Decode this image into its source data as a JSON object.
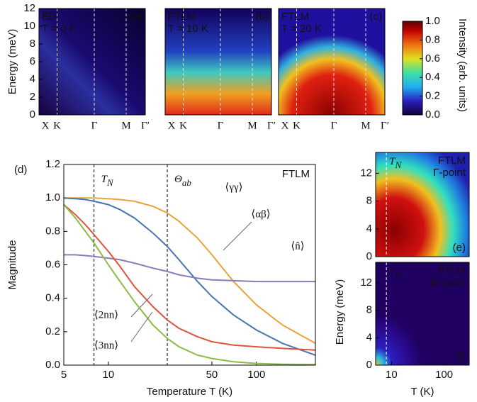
{
  "chart_data": [
    {
      "type": "heatmap",
      "title": "ED",
      "subtitle": "T = 0 K",
      "panel": "(a)",
      "categories": [
        "X",
        "K",
        "Γ",
        "M",
        "Γ′"
      ],
      "ylabel": "Energy (meV)",
      "ylim": [
        0,
        12
      ],
      "yticks": [
        0,
        2,
        4,
        6,
        8,
        10,
        12
      ]
    },
    {
      "type": "heatmap",
      "title": "FTLM",
      "subtitle": "T = 10 K",
      "panel": "(b)",
      "categories": [
        "X",
        "K",
        "Γ",
        "M",
        "Γ′"
      ],
      "ylim": [
        0,
        12
      ]
    },
    {
      "type": "heatmap",
      "title": "FTLM",
      "subtitle": "T = 20 K",
      "panel": "(c)",
      "categories": [
        "X",
        "K",
        "Γ",
        "M",
        "Γ′"
      ],
      "ylim": [
        0,
        12
      ]
    },
    {
      "type": "colorbar",
      "label": "Intensity (arb. units)",
      "ylim": [
        0,
        1
      ],
      "yticks": [
        {
          "value": 0,
          "label": "0.0"
        },
        {
          "value": 0.2,
          "label": "0.2"
        },
        {
          "value": 0.4,
          "label": "0.4"
        },
        {
          "value": 0.6,
          "label": "0.6"
        },
        {
          "value": 0.8,
          "label": "0.8"
        },
        {
          "value": 1,
          "label": "1.0"
        }
      ]
    },
    {
      "type": "line",
      "panel": "(d)",
      "annotation": "FTLM",
      "xlabel": "Temperature T (K)",
      "ylabel": "Magnitude",
      "xlog": true,
      "xlim": [
        5,
        250
      ],
      "xticks": [
        5,
        10,
        50,
        100
      ],
      "ylim": [
        0,
        1.2
      ],
      "yticks": [
        {
          "value": 0,
          "label": "0.0"
        },
        {
          "value": 0.2,
          "label": "0.2"
        },
        {
          "value": 0.4,
          "label": "0.4"
        },
        {
          "value": 0.6,
          "label": "0.6"
        },
        {
          "value": 0.8,
          "label": "0.8"
        },
        {
          "value": 1,
          "label": "1.0"
        },
        {
          "value": 1.2,
          "label": "1.2"
        }
      ],
      "vlines": [
        {
          "x": 8,
          "label": "T",
          "sub": "N"
        },
        {
          "x": 25,
          "label": "Θ",
          "sub": "ab"
        }
      ],
      "x": [
        5,
        6,
        7,
        8,
        10,
        12,
        15,
        20,
        25,
        30,
        40,
        50,
        70,
        100,
        150,
        250
      ],
      "series": [
        {
          "name": "⟨γγ⟩",
          "color": "#e8a33a",
          "values": [
            1,
            1,
            1,
            1,
            0.995,
            0.99,
            0.98,
            0.95,
            0.91,
            0.86,
            0.76,
            0.66,
            0.5,
            0.36,
            0.24,
            0.13
          ]
        },
        {
          "name": "⟨αβ⟩",
          "color": "#4a74b0",
          "values": [
            1,
            0.995,
            0.99,
            0.98,
            0.96,
            0.93,
            0.88,
            0.79,
            0.71,
            0.63,
            0.5,
            0.41,
            0.3,
            0.21,
            0.13,
            0.06
          ]
        },
        {
          "name": "⟨n̂⟩",
          "color": "#8a7bb8",
          "values": [
            0.66,
            0.66,
            0.655,
            0.65,
            0.64,
            0.63,
            0.61,
            0.58,
            0.56,
            0.54,
            0.52,
            0.51,
            0.505,
            0.5,
            0.5,
            0.5
          ]
        },
        {
          "name": "⟨2nn⟩",
          "color": "#e0533a",
          "values": [
            0.96,
            0.9,
            0.84,
            0.78,
            0.68,
            0.59,
            0.47,
            0.35,
            0.27,
            0.22,
            0.17,
            0.14,
            0.12,
            0.11,
            0.1,
            0.09
          ]
        },
        {
          "name": "⟨3nn⟩",
          "color": "#8dbb45",
          "values": [
            0.96,
            0.88,
            0.8,
            0.73,
            0.6,
            0.5,
            0.38,
            0.24,
            0.16,
            0.11,
            0.06,
            0.04,
            0.02,
            0.01,
            0.005,
            0.003
          ]
        }
      ]
    },
    {
      "type": "heatmap",
      "title": "FTLM",
      "subtitle": "Γ-point",
      "panel": "(e)",
      "ylabel": "Energy (meV)",
      "xlog": true,
      "xlim": [
        5,
        300
      ],
      "ylim": [
        0,
        15
      ],
      "yticks": [
        0,
        4,
        8,
        12
      ],
      "vlines": [
        {
          "x": 8,
          "label": "T",
          "sub": "N"
        }
      ]
    },
    {
      "type": "heatmap",
      "title": "FTLM",
      "subtitle": "M-point",
      "panel": "(f)",
      "xlabel": "T (K)",
      "xlog": true,
      "xlim": [
        5,
        300
      ],
      "xticks": [
        10,
        100
      ],
      "ylim": [
        0,
        15
      ],
      "yticks": [
        0,
        4,
        8,
        12
      ],
      "vlines": [
        {
          "x": 8,
          "label": "T",
          "sub": "N"
        }
      ]
    }
  ]
}
